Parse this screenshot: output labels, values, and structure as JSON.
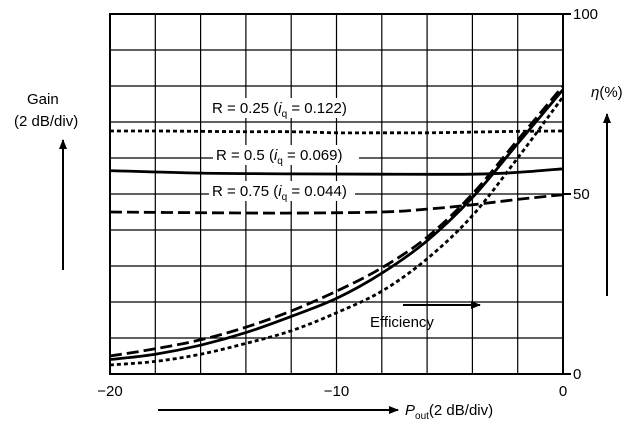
{
  "chart_data": {
    "type": "line",
    "title": "",
    "xlabel": "P",
    "xlabel_sub": "out",
    "xlabel_rest": "(2 dB/div)",
    "ylabel_left_line1": "Gain",
    "ylabel_left_line2": "(2 dB/div)",
    "ylabel_right_prefix": "η",
    "ylabel_right_suffix": "(%)",
    "x_ticks": [
      -20,
      -10,
      0
    ],
    "x_tick_labels": [
      "−20",
      "−10",
      "0"
    ],
    "xlim": [
      -20,
      0
    ],
    "right_y_ticks": [
      0,
      50,
      100
    ],
    "right_y_tick_labels": [
      "0",
      "50",
      "100"
    ],
    "right_ylim": [
      0,
      100
    ],
    "left_ylim_divs": [
      0,
      10
    ],
    "grid": true,
    "annotation_efficiency": "Efficiency",
    "series": [
      {
        "name": "R = 0.25 (i_q = 0.122)",
        "label_a": "R = 0.25 (",
        "label_i": "i",
        "label_sub": "q",
        "label_b": " = 0.122)",
        "dash": "short",
        "gain": {
          "x": [
            -20,
            -18,
            -16,
            -14,
            -12,
            -10,
            -8,
            -6,
            -4,
            -2,
            0
          ],
          "y_divs": [
            6.75,
            6.75,
            6.74,
            6.73,
            6.73,
            6.7,
            6.7,
            6.7,
            6.72,
            6.74,
            6.75
          ]
        },
        "efficiency_pct": {
          "x": [
            -20,
            -18,
            -16,
            -14,
            -12,
            -10,
            -8,
            -6,
            -4,
            -2,
            0
          ],
          "y": [
            2.5,
            3.5,
            5.5,
            8.5,
            12,
            17,
            23,
            32,
            44,
            60,
            77
          ]
        }
      },
      {
        "name": "R = 0.5 (i_q = 0.069)",
        "label_a": "R = 0.5 (",
        "label_i": "i",
        "label_sub": "q",
        "label_b": " = 0.069)",
        "dash": "solid",
        "gain": {
          "x": [
            -20,
            -16,
            -12,
            -8,
            -4,
            -2,
            0
          ],
          "y_divs": [
            5.65,
            5.58,
            5.56,
            5.55,
            5.55,
            5.6,
            5.7
          ]
        },
        "efficiency_pct": {
          "x": [
            -20,
            -18,
            -16,
            -14,
            -12,
            -10,
            -8,
            -6,
            -4,
            -2,
            0
          ],
          "y": [
            4,
            5.5,
            8,
            11.5,
            16,
            21,
            28,
            37,
            49,
            64,
            79
          ]
        }
      },
      {
        "name": "R = 0.75 (i_q = 0.044)",
        "label_a": "R = 0.75 (",
        "label_i": "i",
        "label_sub": "q",
        "label_b": " = 0.044)",
        "dash": "long",
        "gain": {
          "x": [
            -20,
            -16,
            -12,
            -8,
            -6,
            -4,
            -2,
            0
          ],
          "y_divs": [
            4.5,
            4.48,
            4.47,
            4.5,
            4.58,
            4.7,
            4.85,
            4.98
          ]
        },
        "efficiency_pct": {
          "x": [
            -20,
            -18,
            -16,
            -14,
            -12,
            -10,
            -8,
            -6,
            -4,
            -2,
            0
          ],
          "y": [
            5,
            7,
            9.5,
            13,
            17.5,
            23,
            29.5,
            38,
            50,
            65,
            80
          ]
        }
      }
    ]
  }
}
